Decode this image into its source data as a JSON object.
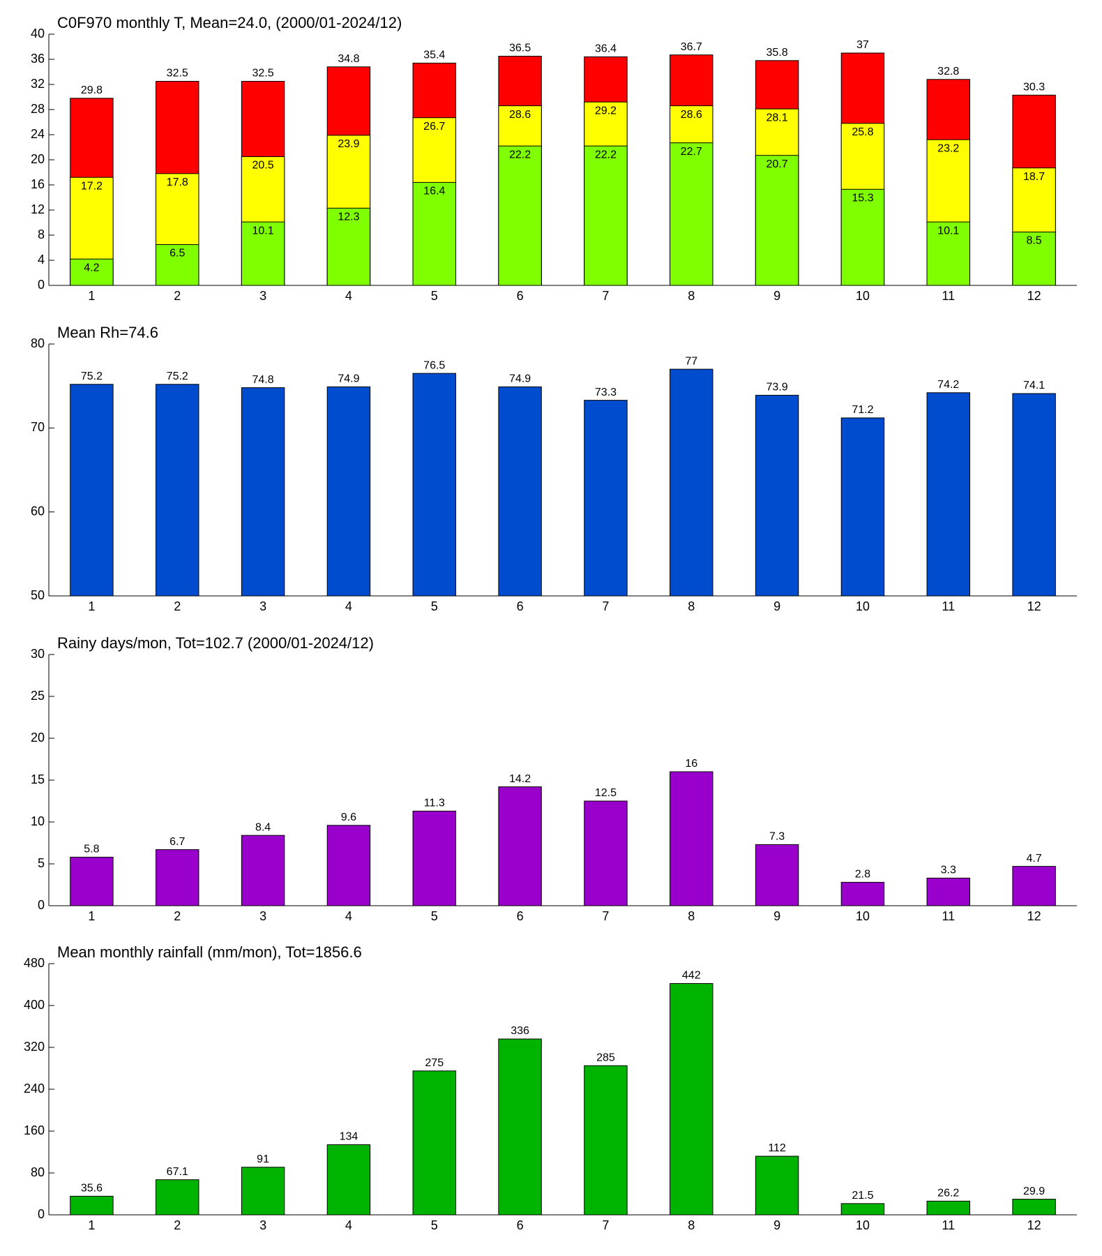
{
  "chart_data": [
    {
      "type": "bar",
      "title": "C0F970 monthly T, Mean=24.0, (2000/01-2024/12)",
      "categories": [
        1,
        2,
        3,
        4,
        5,
        6,
        7,
        8,
        9,
        10,
        11,
        12
      ],
      "series": [
        {
          "color": "#ff0000",
          "values": [
            29.8,
            32.5,
            32.5,
            34.8,
            35.4,
            36.5,
            36.4,
            36.7,
            35.8,
            37,
            32.8,
            30.3
          ]
        },
        {
          "color": "#ffff00",
          "values": [
            17.2,
            17.8,
            20.5,
            23.9,
            26.7,
            28.6,
            29.2,
            28.6,
            28.1,
            25.8,
            23.2,
            18.7
          ]
        },
        {
          "color": "#80ff00",
          "values": [
            4.2,
            6.5,
            10.1,
            12.3,
            16.4,
            22.2,
            22.2,
            22.7,
            20.7,
            15.3,
            10.1,
            8.5
          ]
        }
      ],
      "ylim": [
        0,
        40
      ],
      "yticks": [
        0,
        4,
        8,
        12,
        16,
        20,
        24,
        28,
        32,
        36,
        40
      ]
    },
    {
      "type": "bar",
      "title": "Mean Rh=74.6",
      "categories": [
        1,
        2,
        3,
        4,
        5,
        6,
        7,
        8,
        9,
        10,
        11,
        12
      ],
      "series": [
        {
          "color": "#004cce",
          "values": [
            75.2,
            75.2,
            74.8,
            74.9,
            76.5,
            74.9,
            73.3,
            77,
            73.9,
            71.2,
            74.2,
            74.1
          ]
        }
      ],
      "ylim": [
        50,
        80
      ],
      "yticks": [
        50,
        60,
        70,
        80
      ]
    },
    {
      "type": "bar",
      "title": "Rainy days/mon, Tot=102.7 (2000/01-2024/12)",
      "categories": [
        1,
        2,
        3,
        4,
        5,
        6,
        7,
        8,
        9,
        10,
        11,
        12
      ],
      "series": [
        {
          "color": "#9900cc",
          "values": [
            5.8,
            6.7,
            8.4,
            9.6,
            11.3,
            14.2,
            12.5,
            16,
            7.3,
            2.8,
            3.3,
            4.7
          ]
        }
      ],
      "ylim": [
        0,
        30
      ],
      "yticks": [
        0,
        5,
        10,
        15,
        20,
        25,
        30
      ]
    },
    {
      "type": "bar",
      "title": "Mean monthly rainfall (mm/mon), Tot=1856.6",
      "categories": [
        1,
        2,
        3,
        4,
        5,
        6,
        7,
        8,
        9,
        10,
        11,
        12
      ],
      "series": [
        {
          "color": "#00b300",
          "values": [
            35.6,
            67.1,
            91,
            134,
            275,
            336,
            285,
            442,
            112,
            21.5,
            26.2,
            29.9
          ]
        }
      ],
      "ylim": [
        0,
        480
      ],
      "yticks": [
        0,
        80,
        160,
        240,
        320,
        400,
        480
      ]
    }
  ]
}
